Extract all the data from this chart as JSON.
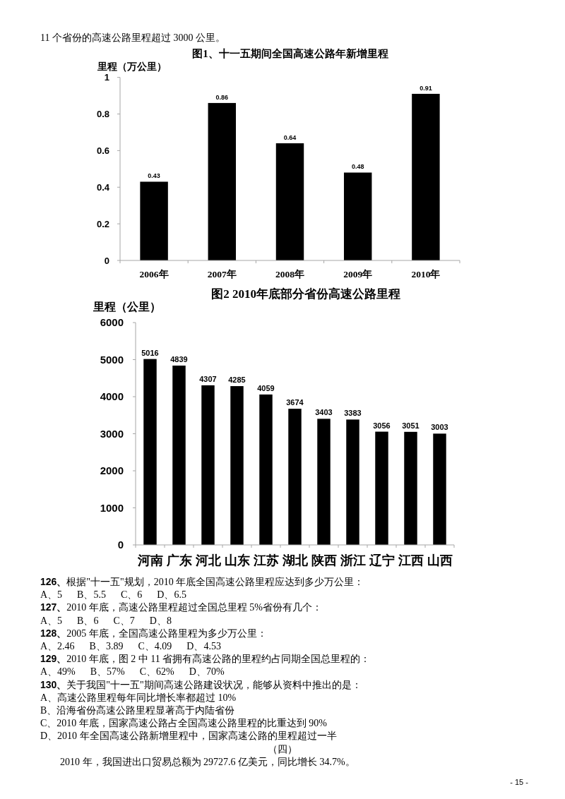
{
  "chart_data": [
    {
      "type": "bar",
      "title": "图1、十一五期间全国高速公路年新增里程",
      "ylabel": "里程（万公里）",
      "categories": [
        "2006年",
        "2007年",
        "2008年",
        "2009年",
        "2010年"
      ],
      "values": [
        0.43,
        0.86,
        0.64,
        0.48,
        0.91
      ],
      "color": "#000000",
      "ylim": [
        0,
        1
      ],
      "yticks": [
        0,
        0.2,
        0.4,
        0.6,
        0.8,
        1
      ],
      "data_labels": true,
      "annotations": [
        "11 个省份的高速公路里程超过 3000 公里。"
      ]
    },
    {
      "type": "bar",
      "title": "图2 2010年底部分省份高速公路里程",
      "ylabel": "里程（公里）",
      "categories": [
        "河南",
        "广东",
        "河北",
        "山东",
        "江苏",
        "湖北",
        "陕西",
        "浙江",
        "辽宁",
        "江西",
        "山西"
      ],
      "values": [
        5016,
        4839,
        4307,
        4285,
        4059,
        3674,
        3403,
        3383,
        3056,
        3051,
        3003
      ],
      "color": "#000000",
      "ylim": [
        0,
        6000
      ],
      "yticks": [
        0,
        1000,
        2000,
        3000,
        4000,
        5000,
        6000
      ],
      "data_labels": true,
      "annotations": [
        "126、根据\"十一五\"规划，2010 年底全国高速公路里程应达到多少万公里：",
        "A、5      B、5.5      C、6      D、6.5",
        "127、2010 年底，高速公路里程超过全国总里程 5%省份有几个：",
        "A、5      B、6      C、7      D、8",
        "128、2005 年底，全国高速公路里程为多少万公里：",
        "A、2.46      B、3.89      C、4.09      D、4.53",
        "129、2010 年底，图 2 中 11 省拥有高速公路的里程约占同期全国总里程的：",
        "A、49%      B、57%      C、62%      D、70%",
        "130、关于我国\"十一五\"期间高速公路建设状况，能够从资料中推出的是：",
        "A、高速公路里程每年同比增长率都超过 10%",
        "B、沿海省份高速公路里程显著高于内陆省份",
        "C、2010 年底，国家高速公路占全国高速公路里程的比重达到 90%",
        "D、2010 年全国高速公路新增里程中，国家高速公路的里程超过一半",
        "（四）",
        "2010 年，我国进出口贸易总额为 29727.6 亿美元，同比增长 34.7%。",
        "- 15 -"
      ]
    }
  ]
}
